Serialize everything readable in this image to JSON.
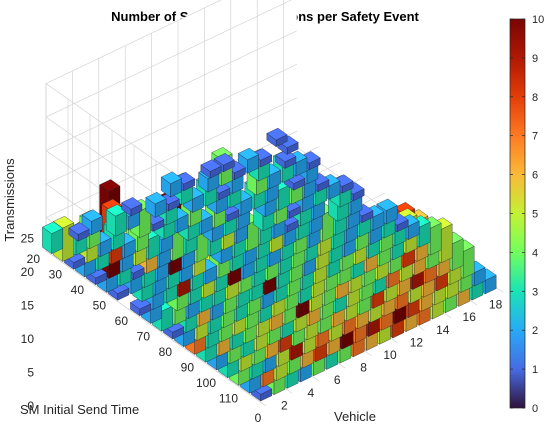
{
  "chart_data": {
    "type": "bar3",
    "title": "Number of Safety Transmissions per Safety Event",
    "xlabel": "Vehicle",
    "ylabel": "SM Initial Send Time",
    "zlabel": "Transmissions",
    "xlim": [
      0,
      19
    ],
    "ylim": [
      20,
      120
    ],
    "zlim": [
      0,
      25
    ],
    "xticks": [
      "0",
      "2",
      "4",
      "6",
      "8",
      "10",
      "12",
      "14",
      "16",
      "18"
    ],
    "yticks": [
      "20",
      "30",
      "40",
      "50",
      "60",
      "70",
      "80",
      "90",
      "100",
      "110"
    ],
    "zticks": [
      "0",
      "5",
      "10",
      "15",
      "20",
      "25"
    ],
    "colorbar": {
      "min": 0,
      "max": 10,
      "colormap": "turbo",
      "ticks": [
        "0",
        "1",
        "2",
        "3",
        "4",
        "5",
        "6",
        "7",
        "8",
        "9",
        "10"
      ]
    },
    "grid": true,
    "value_note": "Bar heights are approximate (estimated from the 3-D view); 0 = no bar",
    "vehicles": [
      0,
      1,
      2,
      3,
      4,
      5,
      6,
      7,
      8,
      9,
      10,
      11,
      12,
      13,
      14,
      15,
      16,
      17,
      18
    ],
    "send_times": [
      20,
      25,
      30,
      35,
      40,
      45,
      50,
      55,
      60,
      65,
      70,
      75,
      80,
      85,
      90,
      95,
      100,
      105,
      110,
      115
    ],
    "z": [
      [
        3,
        0,
        1,
        2,
        0,
        0,
        1,
        0,
        0,
        2,
        1,
        0,
        1,
        1,
        0,
        0,
        0,
        1,
        0
      ],
      [
        5,
        3,
        4,
        0,
        3,
        2,
        0,
        2,
        1,
        3,
        0,
        2,
        4,
        1,
        2,
        1,
        0,
        1,
        0
      ],
      [
        1,
        5,
        2,
        3,
        0,
        4,
        1,
        3,
        0,
        2,
        3,
        1,
        2,
        0,
        3,
        0,
        1,
        0,
        0
      ],
      [
        2,
        3,
        8,
        2,
        4,
        0,
        3,
        2,
        4,
        0,
        2,
        3,
        0,
        4,
        2,
        3,
        2,
        1,
        0
      ],
      [
        1,
        13,
        2,
        5,
        3,
        2,
        0,
        3,
        2,
        4,
        1,
        2,
        3,
        2,
        0,
        1,
        2,
        0,
        0
      ],
      [
        2,
        3,
        1,
        6,
        2,
        4,
        3,
        0,
        2,
        3,
        2,
        0,
        2,
        3,
        4,
        2,
        1,
        0,
        0
      ],
      [
        1,
        2,
        3,
        2,
        11,
        2,
        4,
        3,
        5,
        2,
        0,
        3,
        4,
        1,
        2,
        3,
        2,
        1,
        0
      ],
      [
        0,
        3,
        2,
        3,
        2,
        5,
        0,
        2,
        3,
        4,
        3,
        2,
        1,
        3,
        2,
        0,
        3,
        1,
        0
      ],
      [
        1,
        2,
        3,
        9,
        3,
        2,
        4,
        3,
        2,
        3,
        5,
        2,
        3,
        2,
        0,
        3,
        2,
        0,
        0
      ],
      [
        2,
        0,
        4,
        3,
        5,
        3,
        10,
        2,
        3,
        2,
        3,
        4,
        2,
        4,
        3,
        2,
        1,
        0,
        0
      ],
      [
        3,
        4,
        2,
        3,
        3,
        5,
        4,
        3,
        4,
        3,
        4,
        3,
        5,
        3,
        2,
        3,
        2,
        2,
        0
      ],
      [
        1,
        3,
        6,
        2,
        4,
        3,
        3,
        11,
        3,
        4,
        2,
        5,
        3,
        2,
        4,
        2,
        3,
        1,
        0
      ],
      [
        2,
        5,
        3,
        4,
        3,
        4,
        2,
        3,
        4,
        3,
        5,
        3,
        4,
        5,
        3,
        4,
        3,
        2,
        0
      ],
      [
        7,
        3,
        4,
        5,
        4,
        3,
        5,
        4,
        3,
        5,
        4,
        4,
        3,
        6,
        4,
        3,
        5,
        3,
        0
      ],
      [
        3,
        6,
        3,
        4,
        5,
        6,
        4,
        12,
        5,
        4,
        6,
        5,
        4,
        5,
        4,
        8,
        6,
        4,
        0
      ],
      [
        2,
        4,
        3,
        5,
        4,
        3,
        5,
        6,
        4,
        3,
        5,
        4,
        3,
        7,
        5,
        6,
        4,
        5,
        0
      ],
      [
        3,
        5,
        4,
        6,
        8,
        4,
        5,
        4,
        6,
        5,
        4,
        8,
        5,
        6,
        9,
        7,
        6,
        4,
        0
      ],
      [
        4,
        3,
        2,
        5,
        9,
        5,
        7,
        5,
        7,
        6,
        5,
        6,
        7,
        5,
        6,
        8,
        5,
        4,
        0
      ],
      [
        2,
        7,
        5,
        4,
        6,
        8,
        6,
        13,
        7,
        9,
        7,
        10,
        8,
        6,
        5,
        5,
        4,
        2,
        0
      ],
      [
        1,
        4,
        3,
        2,
        4,
        3,
        4,
        7,
        6,
        5,
        8,
        6,
        7,
        5,
        4,
        6,
        3,
        2,
        0
      ]
    ]
  }
}
